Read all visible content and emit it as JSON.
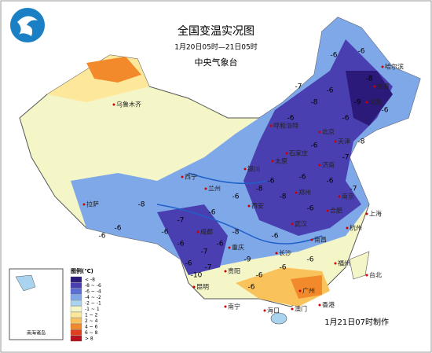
{
  "map": {
    "title": "全国变温实况图",
    "subtitle": "1月20日05时—21日05时",
    "agency": "中央气象台",
    "issued": "1月21日07时制作",
    "inset_label": "南海诸岛",
    "legend": {
      "title": "图例(℃)",
      "entries": [
        {
          "label": "< -8",
          "color": "#2b1a7a"
        },
        {
          "label": "-8 ~ -6",
          "color": "#4a3fb0"
        },
        {
          "label": "-6 ~ -4",
          "color": "#5c6fd6"
        },
        {
          "label": "-4 ~ -2",
          "color": "#7fa8e8"
        },
        {
          "label": "-2 ~ -1",
          "color": "#a9d3ef"
        },
        {
          "label": "-1 ~ 1",
          "color": "#f4f6c8"
        },
        {
          "label": "1 ~ 2",
          "color": "#fde79a"
        },
        {
          "label": "2 ~ 4",
          "color": "#f9c25a"
        },
        {
          "label": "4 ~ 6",
          "color": "#f28a2c"
        },
        {
          "label": "6 ~ 8",
          "color": "#e0401e"
        },
        {
          "label": "> 8",
          "color": "#b5121b"
        }
      ]
    },
    "cities": [
      "乌鲁木齐",
      "呼和浩特",
      "北京",
      "天津",
      "石家庄",
      "太原",
      "济南",
      "西宁",
      "兰州",
      "银川",
      "西安",
      "郑州",
      "南京",
      "上海",
      "合肥",
      "杭州",
      "武汉",
      "南昌",
      "长沙",
      "福州",
      "台北",
      "重庆",
      "贵阳",
      "昆明",
      "南宁",
      "广州",
      "香港",
      "澳门",
      "海口",
      "沈阳",
      "长春",
      "哈尔滨",
      "拉萨",
      "成都"
    ],
    "station_values": [
      -6,
      -6,
      -8,
      -6,
      -9,
      -6,
      -8,
      -7,
      -6,
      -6,
      -7,
      -6,
      -8,
      -6,
      -6,
      -7,
      -6,
      -8,
      -6,
      -6,
      -7,
      -6,
      -6,
      -8,
      -6,
      -7,
      -6,
      -9,
      -6,
      -6,
      -8,
      -6,
      -7,
      -6,
      -6,
      -6,
      -10,
      -6,
      -8,
      -6
    ]
  }
}
